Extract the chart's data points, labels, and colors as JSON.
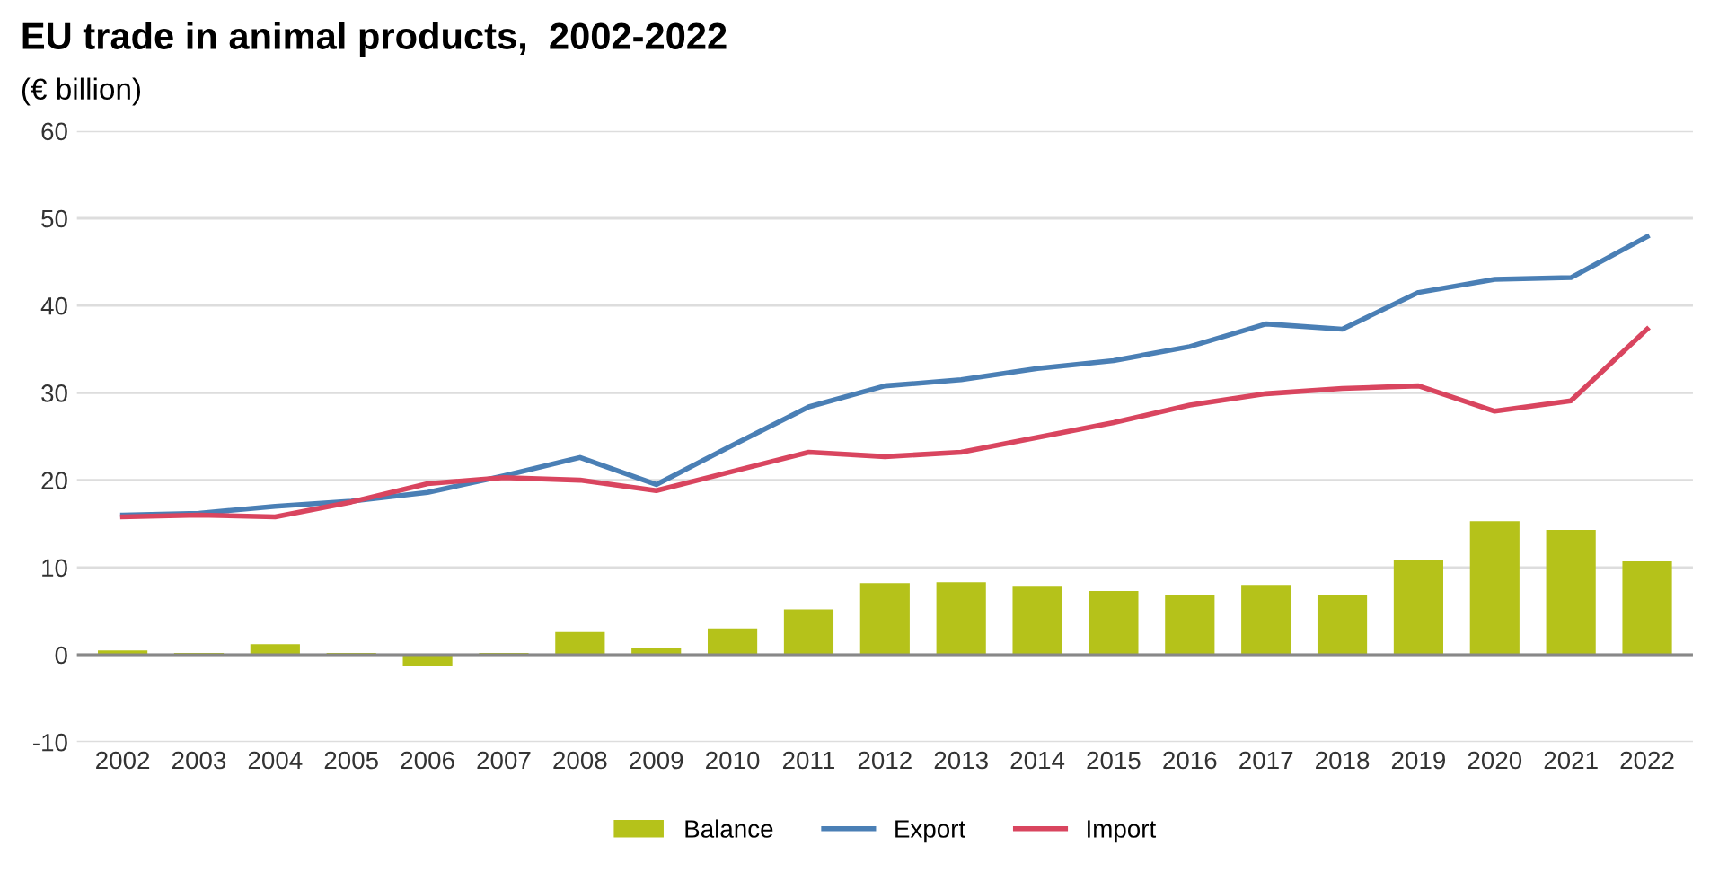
{
  "chart_data": {
    "type": "bar",
    "title": "EU trade in animal products,  2002-2022",
    "subtitle": "(€ billion)",
    "categories": [
      "2002",
      "2003",
      "2004",
      "2005",
      "2006",
      "2007",
      "2008",
      "2009",
      "2010",
      "2011",
      "2012",
      "2013",
      "2014",
      "2015",
      "2016",
      "2017",
      "2018",
      "2019",
      "2020",
      "2021",
      "2022"
    ],
    "series": [
      {
        "name": "Balance",
        "color": "#b5c21a",
        "values": [
          0.5,
          0.2,
          1.2,
          0.2,
          -1.3,
          0.2,
          2.6,
          0.8,
          3.0,
          5.2,
          8.2,
          8.3,
          7.8,
          7.3,
          6.9,
          8.0,
          6.8,
          10.8,
          15.3,
          14.3,
          10.7
        ]
      },
      {
        "name": "Export",
        "type": "line",
        "color": "#4a7fb5",
        "values": [
          16,
          16.2,
          17,
          17.6,
          18.6,
          20.5,
          22.6,
          19.5,
          24,
          28.4,
          30.8,
          31.5,
          32.8,
          33.7,
          35.3,
          37.9,
          37.3,
          41.5,
          43,
          43.2,
          47.9
        ]
      },
      {
        "name": "Import",
        "type": "line",
        "color": "#d9455f",
        "values": [
          15.8,
          16,
          15.8,
          17.5,
          19.6,
          20.3,
          20,
          18.8,
          21,
          23.2,
          22.7,
          23.2,
          24.9,
          26.6,
          28.6,
          29.9,
          30.5,
          30.8,
          27.9,
          29.1,
          37.3
        ]
      }
    ],
    "ylim": [
      -10,
      60
    ],
    "yticks": [
      -10,
      0,
      10,
      20,
      30,
      40,
      50,
      60
    ],
    "grid": "y",
    "legend": "bottom",
    "marker": "none",
    "line_style": "solid"
  }
}
